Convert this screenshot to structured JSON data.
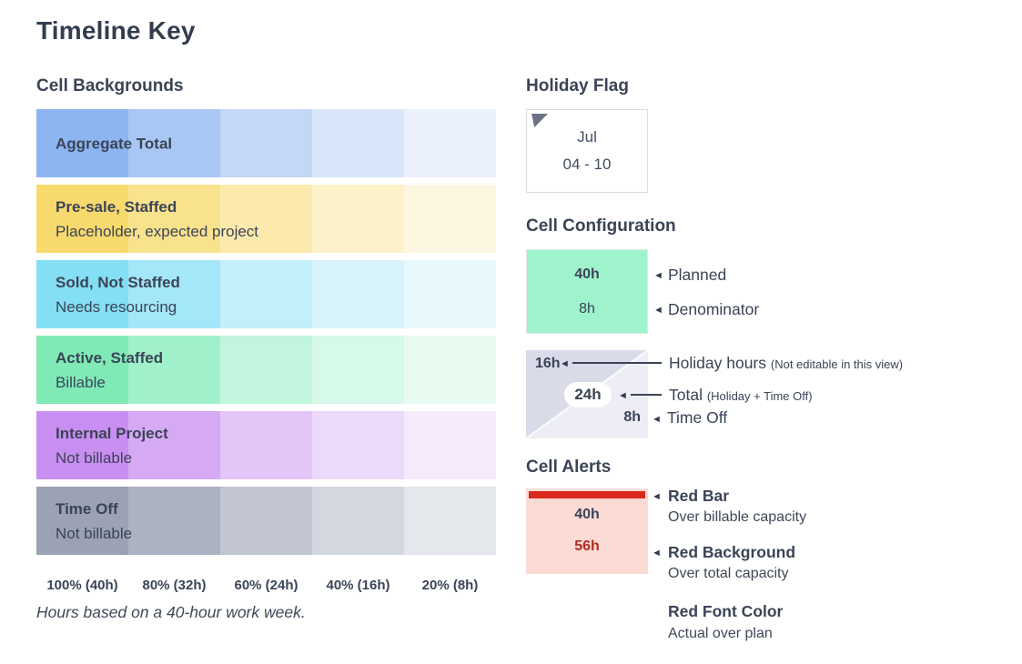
{
  "page": {
    "title": "Timeline Key"
  },
  "ui": {
    "pointer_icon": "◄",
    "text_color": "#3b4456"
  },
  "cell_backgrounds": {
    "heading": "Cell Backgrounds",
    "rows": [
      {
        "title": "Aggregate Total",
        "subtitle": "",
        "colors": [
          "#8cb5f1",
          "#a8c7f4",
          "#c3d8f7",
          "#d9e6fa",
          "#eaf1fc"
        ]
      },
      {
        "title": "Pre-sale, Staffed",
        "subtitle": "Placeholder, expected project",
        "colors": [
          "#f7d96e",
          "#f9e28d",
          "#fbeaab",
          "#fcf1c8",
          "#fdf7e1"
        ]
      },
      {
        "title": "Sold, Not Staffed",
        "subtitle": "Needs resourcing",
        "colors": [
          "#84dff5",
          "#a3e7f8",
          "#c3effa",
          "#d7f4fc",
          "#e8f9fd"
        ]
      },
      {
        "title": "Active, Staffed",
        "subtitle": "Billable",
        "colors": [
          "#7feab6",
          "#a0f0ca",
          "#c2f5de",
          "#d7f9e9",
          "#e8fbf1"
        ]
      },
      {
        "title": "Internal Project",
        "subtitle": "Not billable",
        "colors": [
          "#c88ef1",
          "#d5a9f4",
          "#e3c5f7",
          "#edd9fa",
          "#f5eafc"
        ]
      },
      {
        "title": "Time Off",
        "subtitle": "Not billable",
        "colors": [
          "#9aa2b4",
          "#abb2c1",
          "#c1c6d1",
          "#d3d7e0",
          "#e4e7ec"
        ]
      }
    ],
    "scale_labels": [
      "100% (40h)",
      "80% (32h)",
      "60% (24h)",
      "40% (16h)",
      "20% (8h)"
    ],
    "note": "Hours based on a 40-hour work week."
  },
  "holiday_flag": {
    "heading": "Holiday Flag",
    "month": "Jul",
    "date_range": "04 - 10",
    "flag_color": "#6b7385"
  },
  "cell_configuration": {
    "heading": "Cell Configuration",
    "planned_cell": {
      "bg_color": "#9ef3cd",
      "planned_hours": "40h",
      "denominator_hours": "8h"
    },
    "planned_label": "Planned",
    "denominator_label": "Denominator",
    "holiday_cell": {
      "holiday_hours": "16h",
      "total_hours": "24h",
      "time_off_hours": "8h",
      "top_left_color": "#d9dbe8",
      "bottom_right_color": "#edeef5"
    },
    "holiday_hours_label": "Holiday hours",
    "holiday_hours_note": "(Not editable in this view)",
    "total_label": "Total",
    "total_note": "(Holiday + Time Off)",
    "time_off_label": "Time Off"
  },
  "cell_alerts": {
    "heading": "Cell Alerts",
    "cell": {
      "bg_color": "#fcdbd5",
      "bar_color": "#da291c",
      "planned_hours": "40h",
      "actual_hours": "56h",
      "actual_color": "#b02e24"
    },
    "items": [
      {
        "title": "Red Bar",
        "description": "Over billable capacity"
      },
      {
        "title": "Red Background",
        "description": "Over total capacity"
      },
      {
        "title": "Red Font Color",
        "description": "Actual over plan"
      }
    ]
  }
}
